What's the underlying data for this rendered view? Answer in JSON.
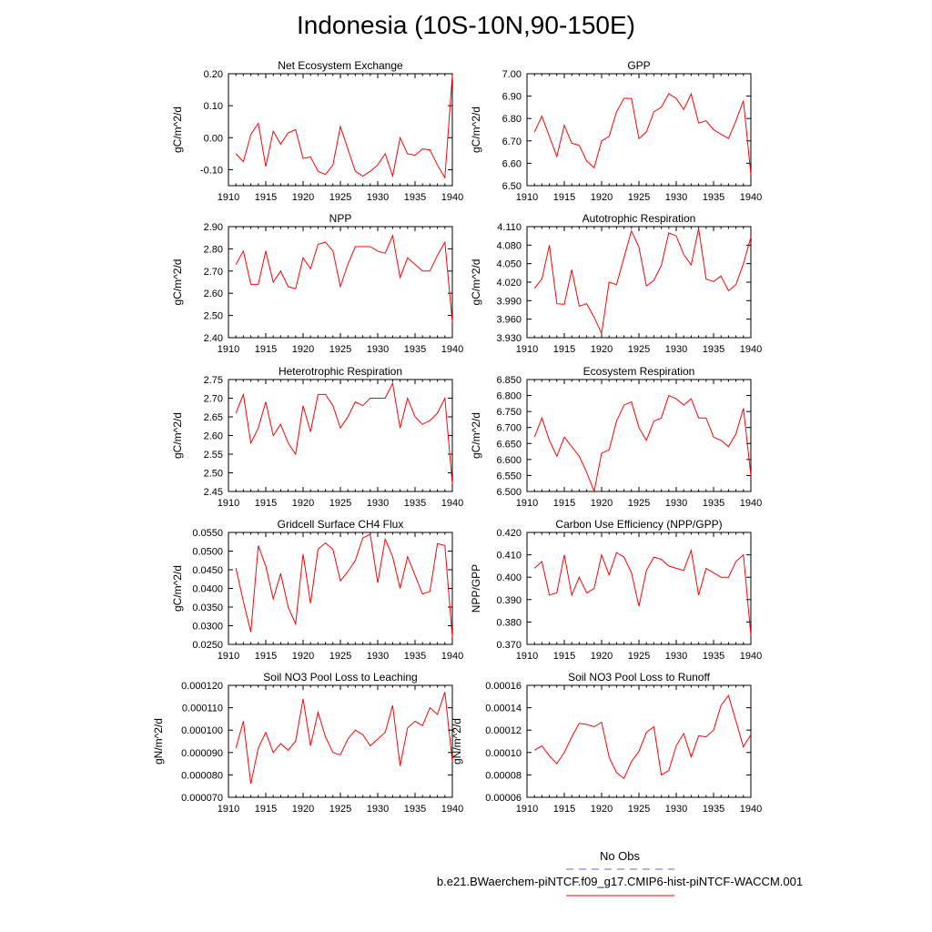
{
  "figure": {
    "title": "Indonesia (10S-10N,90-150E)",
    "series_color": "#ff0000",
    "obs_color": "#6666cc",
    "legend": [
      {
        "label": "No Obs",
        "style": "dashed"
      },
      {
        "label": "b.e21.BWaerchem-piNTCF.f09_g17.CMIP6-hist-piNTCF-WACCM.001",
        "style": "solid"
      }
    ]
  },
  "chart_data": [
    {
      "type": "line",
      "title": "Net Ecosystem Exchange",
      "ylabel": "gC/m^2/d",
      "xlim": [
        1910,
        1940
      ],
      "ylim": [
        -0.15,
        0.2
      ],
      "xticks": [
        "1910",
        "1915",
        "1920",
        "1925",
        "1930",
        "1935",
        "1940"
      ],
      "yticks": [
        "-0.10",
        "0.00",
        "0.10",
        "0.20"
      ],
      "x": [
        1911,
        1912,
        1913,
        1914,
        1915,
        1916,
        1917,
        1918,
        1919,
        1920,
        1921,
        1922,
        1923,
        1924,
        1925,
        1926,
        1927,
        1928,
        1929,
        1930,
        1931,
        1932,
        1933,
        1934,
        1935,
        1936,
        1937,
        1938,
        1939,
        1940
      ],
      "values": [
        -0.05,
        -0.075,
        0.01,
        0.045,
        -0.09,
        0.02,
        -0.02,
        0.015,
        0.025,
        -0.065,
        -0.06,
        -0.105,
        -0.115,
        -0.085,
        0.035,
        -0.035,
        -0.105,
        -0.12,
        -0.105,
        -0.085,
        -0.05,
        -0.12,
        0.0,
        -0.05,
        -0.055,
        -0.035,
        -0.038,
        -0.085,
        -0.125,
        0.195
      ]
    },
    {
      "type": "line",
      "title": "GPP",
      "ylabel": "gC/m^2/d",
      "xlim": [
        1910,
        1940
      ],
      "ylim": [
        6.5,
        7.0
      ],
      "xticks": [
        "1910",
        "1915",
        "1920",
        "1925",
        "1930",
        "1935",
        "1940"
      ],
      "yticks": [
        "6.50",
        "6.60",
        "6.70",
        "6.80",
        "6.90",
        "7.00"
      ],
      "x": [
        1911,
        1912,
        1913,
        1914,
        1915,
        1916,
        1917,
        1918,
        1919,
        1920,
        1921,
        1922,
        1923,
        1924,
        1925,
        1926,
        1927,
        1928,
        1929,
        1930,
        1931,
        1932,
        1933,
        1934,
        1935,
        1936,
        1937,
        1938,
        1939,
        1940
      ],
      "values": [
        6.74,
        6.81,
        6.72,
        6.63,
        6.77,
        6.69,
        6.68,
        6.61,
        6.58,
        6.7,
        6.72,
        6.83,
        6.89,
        6.89,
        6.71,
        6.74,
        6.83,
        6.85,
        6.91,
        6.89,
        6.84,
        6.91,
        6.78,
        6.79,
        6.75,
        6.73,
        6.71,
        6.79,
        6.88,
        6.55
      ]
    },
    {
      "type": "line",
      "title": "NPP",
      "ylabel": "gC/m^2/d",
      "xlim": [
        1910,
        1940
      ],
      "ylim": [
        2.4,
        2.9
      ],
      "xticks": [
        "1910",
        "1915",
        "1920",
        "1925",
        "1930",
        "1935",
        "1940"
      ],
      "yticks": [
        "2.40",
        "2.50",
        "2.60",
        "2.70",
        "2.80",
        "2.90"
      ],
      "x": [
        1911,
        1912,
        1913,
        1914,
        1915,
        1916,
        1917,
        1918,
        1919,
        1920,
        1921,
        1922,
        1923,
        1924,
        1925,
        1926,
        1927,
        1928,
        1929,
        1930,
        1931,
        1932,
        1933,
        1934,
        1935,
        1936,
        1937,
        1938,
        1939,
        1940
      ],
      "values": [
        2.73,
        2.79,
        2.64,
        2.64,
        2.79,
        2.65,
        2.7,
        2.63,
        2.62,
        2.76,
        2.71,
        2.82,
        2.83,
        2.79,
        2.63,
        2.73,
        2.81,
        2.81,
        2.81,
        2.79,
        2.78,
        2.86,
        2.67,
        2.76,
        2.73,
        2.7,
        2.7,
        2.77,
        2.83,
        2.47
      ]
    },
    {
      "type": "line",
      "title": "Autotrophic Respiration",
      "ylabel": "gC/m^2/d",
      "xlim": [
        1910,
        1940
      ],
      "ylim": [
        3.93,
        4.11
      ],
      "xticks": [
        "1910",
        "1915",
        "1920",
        "1925",
        "1930",
        "1935",
        "1940"
      ],
      "yticks": [
        "3.930",
        "3.960",
        "3.990",
        "4.020",
        "4.050",
        "4.080",
        "4.110"
      ],
      "x": [
        1911,
        1912,
        1913,
        1914,
        1915,
        1916,
        1917,
        1918,
        1919,
        1920,
        1921,
        1922,
        1923,
        1924,
        1925,
        1926,
        1927,
        1928,
        1929,
        1930,
        1931,
        1932,
        1933,
        1934,
        1935,
        1936,
        1937,
        1938,
        1939,
        1940
      ],
      "values": [
        4.01,
        4.025,
        4.08,
        3.985,
        3.984,
        4.04,
        3.981,
        3.985,
        3.963,
        3.937,
        4.02,
        4.016,
        4.06,
        4.103,
        4.077,
        4.014,
        4.023,
        4.047,
        4.1,
        4.095,
        4.065,
        4.048,
        4.107,
        4.025,
        4.021,
        4.03,
        4.006,
        4.016,
        4.05,
        4.093
      ]
    },
    {
      "type": "line",
      "title": "Heterotrophic Respiration",
      "ylabel": "gC/m^2/d",
      "xlim": [
        1910,
        1940
      ],
      "ylim": [
        2.45,
        2.75
      ],
      "xticks": [
        "1910",
        "1915",
        "1920",
        "1925",
        "1930",
        "1935",
        "1940"
      ],
      "yticks": [
        "2.45",
        "2.50",
        "2.55",
        "2.60",
        "2.65",
        "2.70",
        "2.75"
      ],
      "x": [
        1911,
        1912,
        1913,
        1914,
        1915,
        1916,
        1917,
        1918,
        1919,
        1920,
        1921,
        1922,
        1923,
        1924,
        1925,
        1926,
        1927,
        1928,
        1929,
        1930,
        1931,
        1932,
        1933,
        1934,
        1935,
        1936,
        1937,
        1938,
        1939,
        1940
      ],
      "values": [
        2.66,
        2.71,
        2.58,
        2.62,
        2.69,
        2.6,
        2.63,
        2.58,
        2.55,
        2.68,
        2.61,
        2.71,
        2.71,
        2.68,
        2.62,
        2.65,
        2.69,
        2.68,
        2.7,
        2.7,
        2.7,
        2.74,
        2.62,
        2.7,
        2.65,
        2.63,
        2.64,
        2.66,
        2.7,
        2.47
      ]
    },
    {
      "type": "line",
      "title": "Ecosystem Respiration",
      "ylabel": "gC/m^2/d",
      "xlim": [
        1910,
        1940
      ],
      "ylim": [
        6.5,
        6.85
      ],
      "xticks": [
        "1910",
        "1915",
        "1920",
        "1925",
        "1930",
        "1935",
        "1940"
      ],
      "yticks": [
        "6.500",
        "6.550",
        "6.600",
        "6.650",
        "6.700",
        "6.750",
        "6.800",
        "6.850"
      ],
      "x": [
        1911,
        1912,
        1913,
        1914,
        1915,
        1916,
        1917,
        1918,
        1919,
        1920,
        1921,
        1922,
        1923,
        1924,
        1925,
        1926,
        1927,
        1928,
        1929,
        1930,
        1931,
        1932,
        1933,
        1934,
        1935,
        1936,
        1937,
        1938,
        1939,
        1940
      ],
      "values": [
        6.67,
        6.73,
        6.66,
        6.61,
        6.67,
        6.64,
        6.61,
        6.56,
        6.5,
        6.62,
        6.63,
        6.72,
        6.77,
        6.78,
        6.7,
        6.66,
        6.72,
        6.73,
        6.8,
        6.79,
        6.77,
        6.79,
        6.73,
        6.73,
        6.67,
        6.66,
        6.64,
        6.68,
        6.76,
        6.55
      ]
    },
    {
      "type": "line",
      "title": "Gridcell Surface CH4 Flux",
      "ylabel": "gC/m^2/d",
      "xlim": [
        1910,
        1940
      ],
      "ylim": [
        0.025,
        0.055
      ],
      "xticks": [
        "1910",
        "1915",
        "1920",
        "1925",
        "1930",
        "1935",
        "1940"
      ],
      "yticks": [
        "0.0250",
        "0.0300",
        "0.0350",
        "0.0400",
        "0.0450",
        "0.0500",
        "0.0550"
      ],
      "x": [
        1911,
        1912,
        1913,
        1914,
        1915,
        1916,
        1917,
        1918,
        1919,
        1920,
        1921,
        1922,
        1923,
        1924,
        1925,
        1926,
        1927,
        1928,
        1929,
        1930,
        1931,
        1932,
        1933,
        1934,
        1935,
        1936,
        1937,
        1938,
        1939,
        1940
      ],
      "values": [
        0.0455,
        0.0365,
        0.0283,
        0.0515,
        0.046,
        0.0372,
        0.044,
        0.035,
        0.0305,
        0.0492,
        0.036,
        0.0505,
        0.0522,
        0.0505,
        0.042,
        0.0445,
        0.0475,
        0.0535,
        0.0545,
        0.0415,
        0.0532,
        0.0485,
        0.04,
        0.0485,
        0.0435,
        0.0385,
        0.0392,
        0.052,
        0.0515,
        0.027
      ]
    },
    {
      "type": "line",
      "title": "Carbon Use Efficiency (NPP/GPP)",
      "ylabel": "NPP/GPP",
      "xlim": [
        1910,
        1940
      ],
      "ylim": [
        0.37,
        0.42
      ],
      "xticks": [
        "1910",
        "1915",
        "1920",
        "1925",
        "1930",
        "1935",
        "1940"
      ],
      "yticks": [
        "0.370",
        "0.380",
        "0.390",
        "0.400",
        "0.410",
        "0.420"
      ],
      "x": [
        1911,
        1912,
        1913,
        1914,
        1915,
        1916,
        1917,
        1918,
        1919,
        1920,
        1921,
        1922,
        1923,
        1924,
        1925,
        1926,
        1927,
        1928,
        1929,
        1930,
        1931,
        1932,
        1933,
        1934,
        1935,
        1936,
        1937,
        1938,
        1939,
        1940
      ],
      "values": [
        0.404,
        0.407,
        0.392,
        0.393,
        0.41,
        0.392,
        0.4,
        0.393,
        0.395,
        0.41,
        0.401,
        0.411,
        0.409,
        0.402,
        0.387,
        0.403,
        0.409,
        0.408,
        0.405,
        0.404,
        0.403,
        0.412,
        0.392,
        0.404,
        0.402,
        0.4,
        0.4,
        0.407,
        0.41,
        0.374
      ]
    },
    {
      "type": "line",
      "title": "Soil NO3 Pool Loss to Leaching",
      "ylabel": "gN/m^2/d",
      "xlim": [
        1910,
        1940
      ],
      "ylim": [
        7e-05,
        0.00012
      ],
      "xticks": [
        "1910",
        "1915",
        "1920",
        "1925",
        "1930",
        "1935",
        "1940"
      ],
      "yticks": [
        "0.000070",
        "0.000080",
        "0.000090",
        "0.000100",
        "0.000110",
        "0.000120"
      ],
      "x": [
        1911,
        1912,
        1913,
        1914,
        1915,
        1916,
        1917,
        1918,
        1919,
        1920,
        1921,
        1922,
        1923,
        1924,
        1925,
        1926,
        1927,
        1928,
        1929,
        1930,
        1931,
        1932,
        1933,
        1934,
        1935,
        1936,
        1937,
        1938,
        1939,
        1940
      ],
      "values": [
        9.2e-05,
        0.000104,
        7.6e-05,
        9.2e-05,
        9.9e-05,
        9e-05,
        9.4e-05,
        9.1e-05,
        9.5e-05,
        0.000114,
        9.3e-05,
        0.000108,
        9.7e-05,
        9e-05,
        8.9e-05,
        9.6e-05,
        0.0001,
        9.8e-05,
        9.3e-05,
        9.6e-05,
        9.9e-05,
        0.000111,
        8.4e-05,
        0.000101,
        0.000104,
        0.000102,
        0.00011,
        0.000107,
        0.000117,
        8.6e-05
      ]
    },
    {
      "type": "line",
      "title": "Soil NO3 Pool Loss to Runoff",
      "ylabel": "gN/m^2/d",
      "xlim": [
        1910,
        1940
      ],
      "ylim": [
        6e-05,
        0.00016
      ],
      "xticks": [
        "1910",
        "1915",
        "1920",
        "1925",
        "1930",
        "1935",
        "1940"
      ],
      "yticks": [
        "0.00006",
        "0.00008",
        "0.00010",
        "0.00012",
        "0.00014",
        "0.00016"
      ],
      "x": [
        1911,
        1912,
        1913,
        1914,
        1915,
        1916,
        1917,
        1918,
        1919,
        1920,
        1921,
        1922,
        1923,
        1924,
        1925,
        1926,
        1927,
        1928,
        1929,
        1930,
        1931,
        1932,
        1933,
        1934,
        1935,
        1936,
        1937,
        1938,
        1939,
        1940
      ],
      "values": [
        0.000102,
        0.000106,
        9.7e-05,
        9e-05,
        0.0001,
        0.000114,
        0.000126,
        0.000125,
        0.000123,
        0.000127,
        9.6e-05,
        8.2e-05,
        7.7e-05,
        9.2e-05,
        0.000101,
        0.000118,
        0.000123,
        8e-05,
        8.4e-05,
        0.000106,
        0.000117,
        9.6e-05,
        0.000115,
        0.000114,
        0.00012,
        0.000142,
        0.000151,
        0.000128,
        0.000105,
        0.000116
      ]
    }
  ]
}
